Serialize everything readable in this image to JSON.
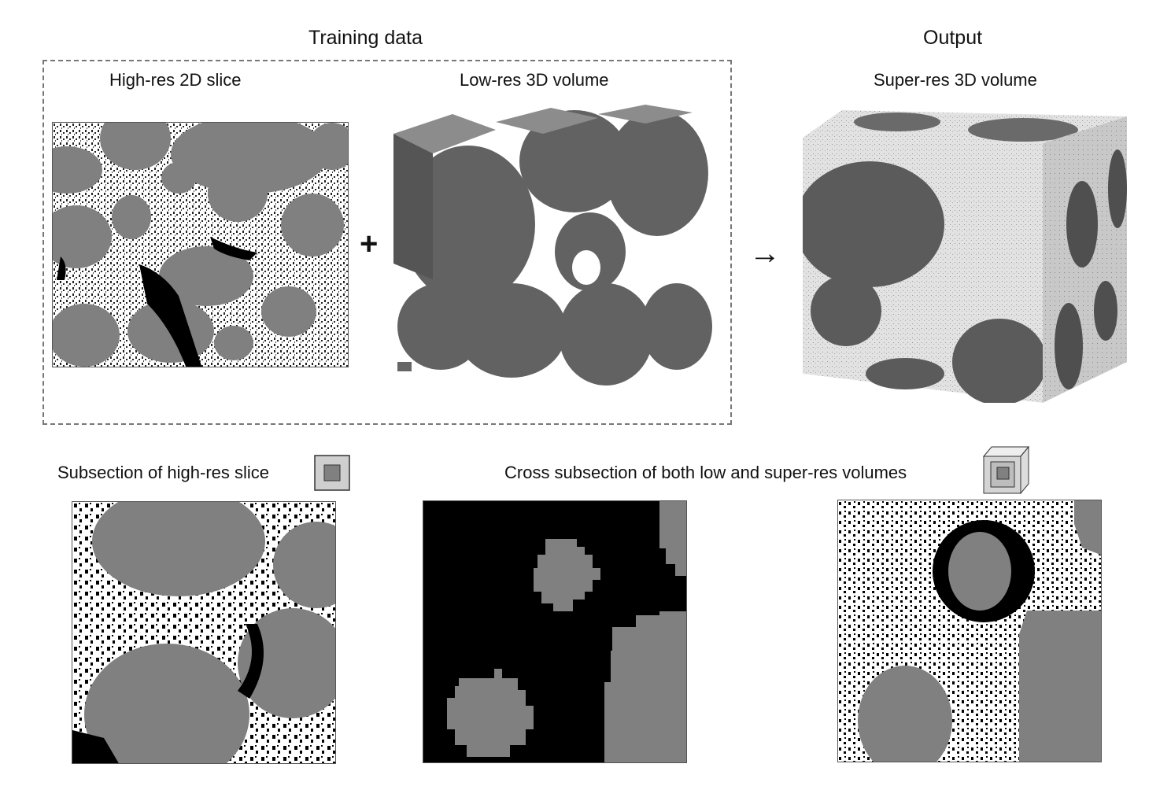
{
  "header": {
    "training_title": "Training data",
    "output_title": "Output"
  },
  "panels": {
    "highres_slice_label": "High-res 2D slice",
    "lowres_volume_label": "Low-res 3D volume",
    "superres_volume_label": "Super-res 3D volume",
    "plus_symbol": "+",
    "arrow_symbol": "→"
  },
  "bottom": {
    "subsection_label": "Subsection of high-res slice",
    "cross_subsection_label": "Cross subsection of both low and super-res volumes"
  },
  "icons": {
    "square_icon": "square-subsection-icon",
    "cube_icon": "cube-subsection-icon"
  },
  "colors": {
    "particle_gray": "#808080",
    "pore_black": "#000000",
    "matrix_white": "#ffffff",
    "volume_dark": "#5e5e5e",
    "volume_light": "#d9d9d9"
  }
}
